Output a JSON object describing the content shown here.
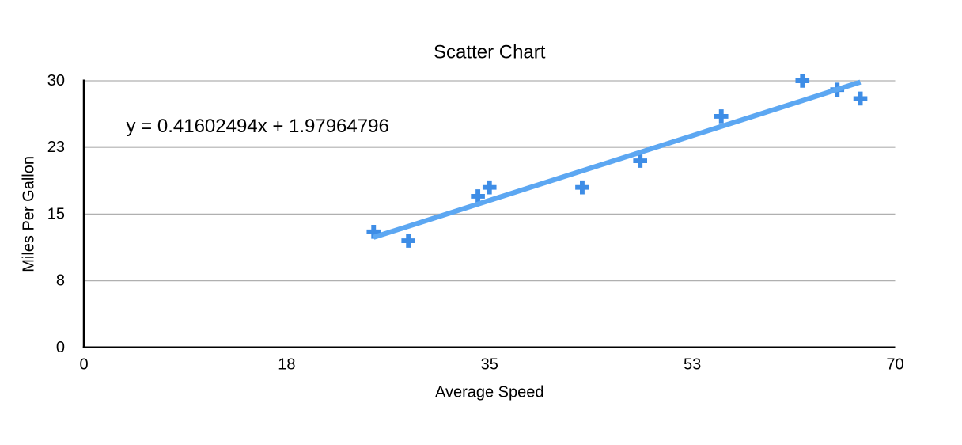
{
  "chart_data": {
    "type": "scatter",
    "title": "Scatter Chart",
    "xlabel": "Average Speed",
    "ylabel": "Miles Per Gallon",
    "xlim": [
      0,
      70
    ],
    "ylim": [
      0,
      30
    ],
    "grid": "horizontal-only",
    "legend": "none",
    "marker_shape": "plus",
    "x_ticks": [
      {
        "pos": 0,
        "label": "0"
      },
      {
        "pos": 17.5,
        "label": "18"
      },
      {
        "pos": 35,
        "label": "35"
      },
      {
        "pos": 52.5,
        "label": "53"
      },
      {
        "pos": 70,
        "label": "70"
      }
    ],
    "y_ticks": [
      {
        "pos": 0,
        "label": "0"
      },
      {
        "pos": 7.5,
        "label": "8"
      },
      {
        "pos": 15,
        "label": "15"
      },
      {
        "pos": 22.5,
        "label": "23"
      },
      {
        "pos": 30,
        "label": "30"
      }
    ],
    "series": [
      {
        "name": "Miles Per Gallon",
        "points": [
          {
            "x": 25,
            "y": 13
          },
          {
            "x": 28,
            "y": 12
          },
          {
            "x": 34,
            "y": 17
          },
          {
            "x": 35,
            "y": 18
          },
          {
            "x": 43,
            "y": 18
          },
          {
            "x": 48,
            "y": 21
          },
          {
            "x": 55,
            "y": 26
          },
          {
            "x": 62,
            "y": 30
          },
          {
            "x": 65,
            "y": 29
          },
          {
            "x": 67,
            "y": 28
          }
        ]
      }
    ],
    "trendline": {
      "equation": "y = 0.41602494x + 1.97964796",
      "slope": 0.41602494,
      "intercept": 1.97964796,
      "x_start": 25,
      "x_end": 67
    },
    "colors": {
      "marker": "#3E8DE6",
      "trendline": "#5CA7F2",
      "gridline": "#B0B0B0",
      "axis": "#000000",
      "text": "#000000",
      "background": "#FFFFFF"
    }
  }
}
